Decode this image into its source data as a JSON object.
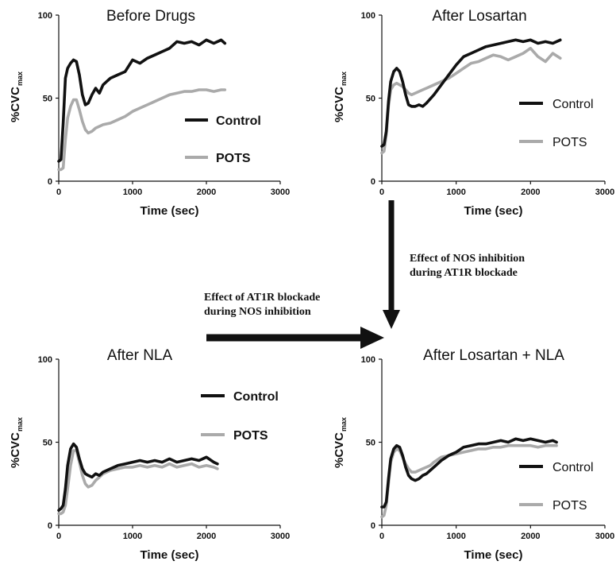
{
  "colors": {
    "control": "#111111",
    "pots": "#aaaaaa"
  },
  "annotations": [
    {
      "id": "nos",
      "lines": [
        "Effect of NOS inhibition",
        "during AT1R blockade"
      ]
    },
    {
      "id": "at1r",
      "lines": [
        "Effect of AT1R blockade",
        "during NOS inhibition"
      ]
    }
  ],
  "chart_data": [
    {
      "type": "line",
      "title": "Before Drugs",
      "xlabel": "Time (sec)",
      "ylabel": "%CVC",
      "ylabel_sub": "max",
      "xlim": [
        0,
        3000
      ],
      "ylim": [
        0,
        100
      ],
      "xticks": [
        0,
        1000,
        2000,
        3000
      ],
      "yticks": [
        0,
        50,
        100
      ],
      "legend_bold": true,
      "series": [
        {
          "name": "Control",
          "x": [
            0,
            30,
            60,
            90,
            120,
            160,
            200,
            240,
            280,
            320,
            360,
            400,
            450,
            500,
            550,
            600,
            650,
            700,
            800,
            900,
            1000,
            1100,
            1200,
            1300,
            1400,
            1500,
            1600,
            1700,
            1800,
            1900,
            2000,
            2100,
            2200,
            2250
          ],
          "y": [
            12,
            13,
            35,
            62,
            68,
            71,
            73,
            72,
            64,
            52,
            46,
            47,
            52,
            56,
            53,
            58,
            60,
            62,
            64,
            66,
            73,
            71,
            74,
            76,
            78,
            80,
            84,
            83,
            84,
            82,
            85,
            83,
            85,
            83
          ]
        },
        {
          "name": "POTS",
          "x": [
            0,
            30,
            60,
            90,
            120,
            160,
            200,
            240,
            280,
            320,
            360,
            400,
            450,
            500,
            600,
            700,
            800,
            900,
            1000,
            1100,
            1200,
            1300,
            1400,
            1500,
            1600,
            1700,
            1800,
            1900,
            2000,
            2100,
            2200,
            2250
          ],
          "y": [
            7,
            7,
            8,
            25,
            38,
            45,
            49,
            49,
            43,
            36,
            31,
            29,
            30,
            32,
            34,
            35,
            37,
            39,
            42,
            44,
            46,
            48,
            50,
            52,
            53,
            54,
            54,
            55,
            55,
            54,
            55,
            55
          ]
        }
      ]
    },
    {
      "type": "line",
      "title": "After Losartan",
      "xlabel": "Time (sec)",
      "ylabel": "%CVC",
      "ylabel_sub": "max",
      "xlim": [
        0,
        3000
      ],
      "ylim": [
        0,
        100
      ],
      "xticks": [
        0,
        1000,
        2000,
        3000
      ],
      "yticks": [
        0,
        50,
        100
      ],
      "legend_bold": false,
      "series": [
        {
          "name": "Control",
          "x": [
            0,
            30,
            60,
            90,
            120,
            160,
            200,
            240,
            280,
            320,
            360,
            400,
            450,
            500,
            550,
            600,
            700,
            800,
            900,
            1000,
            1100,
            1200,
            1300,
            1400,
            1500,
            1600,
            1700,
            1800,
            1900,
            2000,
            2100,
            2200,
            2300,
            2400
          ],
          "y": [
            21,
            22,
            30,
            48,
            60,
            66,
            68,
            66,
            60,
            52,
            46,
            45,
            45,
            46,
            45,
            47,
            52,
            58,
            64,
            70,
            75,
            77,
            79,
            81,
            82,
            83,
            84,
            85,
            84,
            85,
            83,
            84,
            83,
            85
          ]
        },
        {
          "name": "POTS",
          "x": [
            0,
            30,
            60,
            90,
            120,
            160,
            200,
            240,
            280,
            320,
            360,
            400,
            450,
            500,
            550,
            600,
            700,
            800,
            900,
            1000,
            1100,
            1200,
            1300,
            1400,
            1500,
            1600,
            1700,
            1800,
            1900,
            2000,
            2100,
            2200,
            2300,
            2400
          ],
          "y": [
            17,
            18,
            28,
            45,
            55,
            58,
            59,
            58,
            57,
            55,
            53,
            52,
            53,
            54,
            55,
            56,
            58,
            60,
            62,
            65,
            68,
            71,
            72,
            74,
            76,
            75,
            73,
            75,
            77,
            80,
            75,
            72,
            77,
            74
          ]
        }
      ]
    },
    {
      "type": "line",
      "title": "After NLA",
      "xlabel": "Time (sec)",
      "ylabel": "%CVC",
      "ylabel_sub": "max",
      "xlim": [
        0,
        3000
      ],
      "ylim": [
        0,
        100
      ],
      "xticks": [
        0,
        1000,
        2000,
        3000
      ],
      "yticks": [
        0,
        50,
        100
      ],
      "legend_bold": true,
      "series": [
        {
          "name": "Control",
          "x": [
            0,
            30,
            60,
            90,
            120,
            160,
            200,
            240,
            280,
            320,
            360,
            400,
            450,
            500,
            550,
            600,
            650,
            700,
            800,
            900,
            1000,
            1100,
            1200,
            1300,
            1400,
            1500,
            1600,
            1700,
            1800,
            1900,
            2000,
            2100,
            2150
          ],
          "y": [
            9,
            10,
            12,
            22,
            36,
            46,
            49,
            47,
            40,
            34,
            31,
            30,
            29,
            31,
            30,
            32,
            33,
            34,
            36,
            37,
            38,
            39,
            38,
            39,
            38,
            40,
            38,
            39,
            40,
            39,
            41,
            38,
            37
          ]
        },
        {
          "name": "POTS",
          "x": [
            0,
            30,
            60,
            90,
            120,
            160,
            200,
            240,
            280,
            320,
            360,
            400,
            450,
            500,
            550,
            600,
            650,
            700,
            800,
            900,
            1000,
            1100,
            1200,
            1300,
            1400,
            1500,
            1600,
            1700,
            1800,
            1900,
            2000,
            2100,
            2150
          ],
          "y": [
            7,
            7,
            8,
            12,
            22,
            36,
            45,
            45,
            38,
            30,
            25,
            23,
            24,
            27,
            29,
            31,
            32,
            33,
            34,
            35,
            35,
            36,
            35,
            36,
            35,
            37,
            35,
            36,
            37,
            35,
            36,
            35,
            34
          ]
        }
      ]
    },
    {
      "type": "line",
      "title": "After Losartan + NLA",
      "xlabel": "Time (sec)",
      "ylabel": "%CVC",
      "ylabel_sub": "max",
      "xlim": [
        0,
        3000
      ],
      "ylim": [
        0,
        100
      ],
      "xticks": [
        0,
        1000,
        2000,
        3000
      ],
      "yticks": [
        0,
        50,
        100
      ],
      "legend_bold": false,
      "series": [
        {
          "name": "Control",
          "x": [
            0,
            30,
            60,
            90,
            120,
            160,
            200,
            240,
            280,
            320,
            360,
            400,
            450,
            500,
            550,
            600,
            650,
            700,
            800,
            900,
            1000,
            1100,
            1200,
            1300,
            1400,
            1500,
            1600,
            1700,
            1800,
            1900,
            2000,
            2100,
            2200,
            2300,
            2350
          ],
          "y": [
            11,
            11,
            14,
            28,
            40,
            46,
            48,
            47,
            42,
            35,
            30,
            28,
            27,
            28,
            30,
            31,
            33,
            35,
            39,
            42,
            44,
            47,
            48,
            49,
            49,
            50,
            51,
            50,
            52,
            51,
            52,
            51,
            50,
            51,
            50
          ]
        },
        {
          "name": "POTS",
          "x": [
            0,
            30,
            60,
            90,
            120,
            160,
            200,
            240,
            280,
            320,
            360,
            400,
            450,
            500,
            550,
            600,
            650,
            700,
            800,
            900,
            1000,
            1100,
            1200,
            1300,
            1400,
            1500,
            1600,
            1700,
            1800,
            1900,
            2000,
            2100,
            2200,
            2300,
            2350
          ],
          "y": [
            5,
            6,
            12,
            25,
            38,
            44,
            46,
            45,
            41,
            37,
            34,
            32,
            32,
            33,
            34,
            35,
            36,
            38,
            41,
            42,
            43,
            44,
            45,
            46,
            46,
            47,
            47,
            48,
            48,
            48,
            48,
            47,
            48,
            48,
            48
          ]
        }
      ]
    }
  ]
}
